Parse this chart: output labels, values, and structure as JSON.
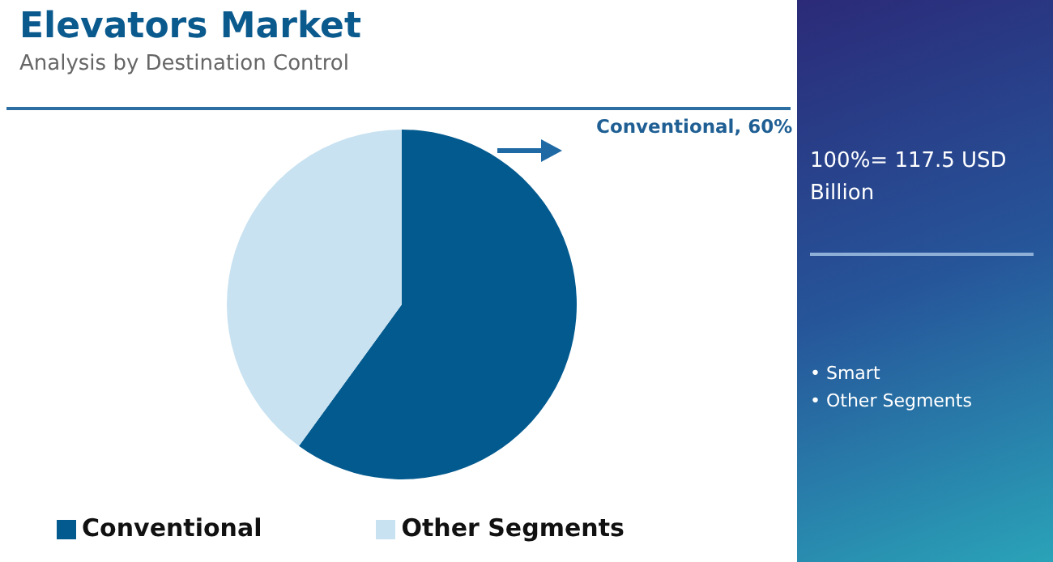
{
  "chart_data": {
    "type": "pie",
    "title": "Elevators Market",
    "subtitle": "Analysis by Destination Control",
    "categories": [
      "Conventional",
      "Other Segments"
    ],
    "values": [
      60,
      40
    ],
    "colors": [
      "#035a8f",
      "#c8e2f1"
    ],
    "value_labels": [
      "Conventional, 60%",
      null
    ],
    "legend": "bottom",
    "annotations": [
      "100%= 117.5 USD Billion",
      "• Smart",
      "• Other Segments"
    ]
  }
}
